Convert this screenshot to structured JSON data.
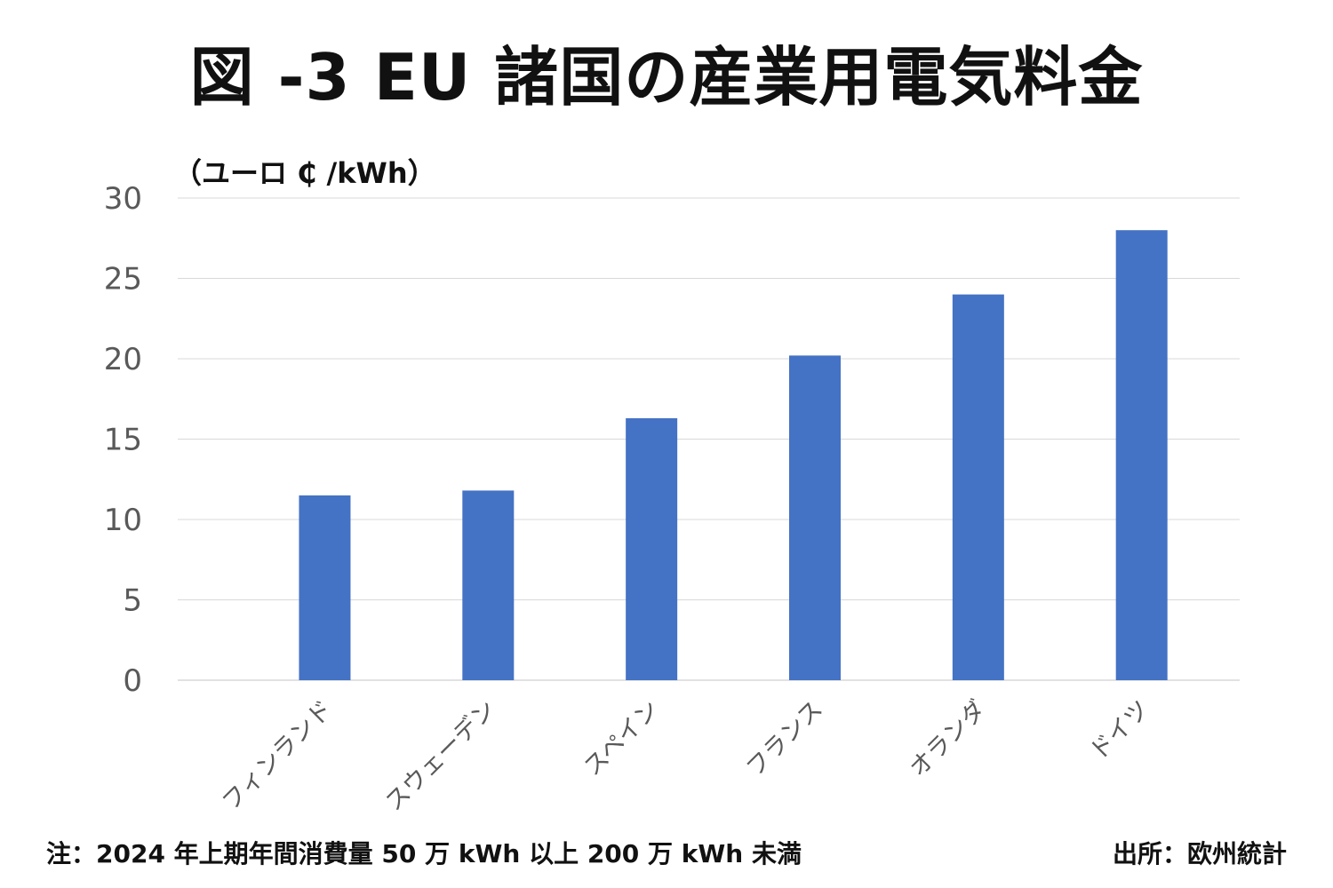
{
  "title": "図 -3 EU 諸国の産業用電気料金",
  "unit_label": "（ユーロ ₵ /kWh）",
  "footnote": "注：2024 年上期年間消費量 50 万 kWh 以上 200 万 kWh 未満",
  "source": "出所：欧州統計",
  "colors": {
    "bar": "#4472C4",
    "grid": "#D9D9D9",
    "tick": "#595959"
  },
  "chart_data": {
    "type": "bar",
    "categories": [
      "フィンランド",
      "スウェーデン",
      "スペイン",
      "フランス",
      "オランダ",
      "ドイツ"
    ],
    "values": [
      11.5,
      11.8,
      16.3,
      20.2,
      24.0,
      28.0
    ],
    "title": "図 -3 EU 諸国の産業用電気料金",
    "ylabel": "（ユーロ ₵ /kWh）",
    "ylim": [
      0,
      30
    ],
    "yticks": [
      0,
      5,
      10,
      15,
      20,
      25,
      30
    ],
    "grid": true,
    "legend": "none"
  }
}
